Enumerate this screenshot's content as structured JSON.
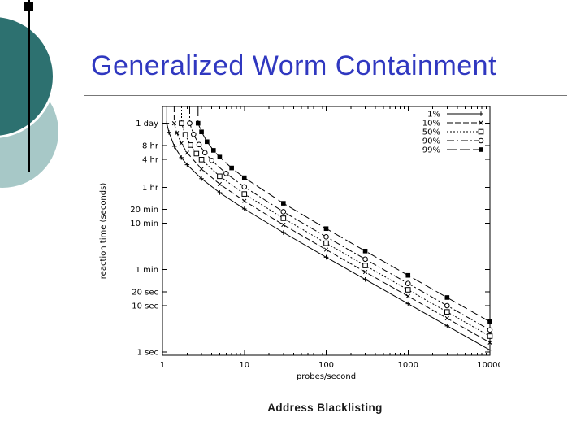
{
  "slide": {
    "title": "Generalized Worm Containment",
    "caption": "Address Blacklisting",
    "colors": {
      "title": "#3038C0",
      "caption": "#1A1A1A",
      "circle_dark": "#2D7170",
      "circle_light": "#A7C8C7",
      "accent_line": "#000000",
      "background": "#FFFFFF"
    }
  },
  "chart_data": {
    "type": "line",
    "title": "",
    "xlabel": "probes/second",
    "ylabel": "reaction time (seconds)",
    "x_scale": "log",
    "y_scale": "log",
    "xlim": [
      1,
      10000
    ],
    "ylim_seconds": [
      1,
      200000
    ],
    "grid": false,
    "legend_position": "top-right-inside",
    "x_ticks": [
      {
        "value": 1,
        "label": "1"
      },
      {
        "value": 10,
        "label": "10"
      },
      {
        "value": 100,
        "label": "100"
      },
      {
        "value": 1000,
        "label": "1000"
      },
      {
        "value": 10000,
        "label": "10000"
      }
    ],
    "y_ticks": [
      {
        "seconds": 86400,
        "label": "1 day"
      },
      {
        "seconds": 28800,
        "label": "8 hr"
      },
      {
        "seconds": 14400,
        "label": "4 hr"
      },
      {
        "seconds": 3600,
        "label": "1 hr"
      },
      {
        "seconds": 1200,
        "label": "20 min"
      },
      {
        "seconds": 600,
        "label": "10 min"
      },
      {
        "seconds": 60,
        "label": "1 min"
      },
      {
        "seconds": 20,
        "label": "20 sec"
      },
      {
        "seconds": 10,
        "label": "10 sec"
      },
      {
        "seconds": 1,
        "label": "1 sec"
      }
    ],
    "series": [
      {
        "name": "1%",
        "marker": "plus",
        "line_style": "solid",
        "points": [
          [
            1.13,
            86400
          ],
          [
            1.2,
            55000
          ],
          [
            1.4,
            27500
          ],
          [
            1.7,
            15700
          ],
          [
            2,
            11000
          ],
          [
            3,
            5500
          ],
          [
            5,
            2750
          ],
          [
            10,
            1222
          ],
          [
            30,
            379
          ],
          [
            100,
            111
          ],
          [
            300,
            36.8
          ],
          [
            1000,
            11.0
          ],
          [
            3000,
            3.67
          ],
          [
            10000,
            1.1
          ]
        ]
      },
      {
        "name": "10%",
        "marker": "cross",
        "line_style": "dashed",
        "points": [
          [
            1.39,
            86400
          ],
          [
            1.5,
            53300
          ],
          [
            1.7,
            32000
          ],
          [
            2,
            20000
          ],
          [
            3,
            8890
          ],
          [
            5,
            4210
          ],
          [
            10,
            1818
          ],
          [
            30,
            556
          ],
          [
            100,
            162
          ],
          [
            300,
            53.5
          ],
          [
            1000,
            16.0
          ],
          [
            3000,
            5.34
          ],
          [
            10000,
            1.6
          ]
        ]
      },
      {
        "name": "50%",
        "marker": "square-open",
        "line_style": "dotted",
        "points": [
          [
            1.71,
            86400
          ],
          [
            1.9,
            48900
          ],
          [
            2.2,
            29300
          ],
          [
            2.6,
            19100
          ],
          [
            3,
            14200
          ],
          [
            5,
            6200
          ],
          [
            10,
            2570
          ],
          [
            30,
            770
          ],
          [
            100,
            223
          ],
          [
            300,
            73.7
          ],
          [
            1000,
            22.0
          ],
          [
            3000,
            7.34
          ],
          [
            10000,
            2.2
          ]
        ]
      },
      {
        "name": "90%",
        "marker": "circle-open",
        "line_style": "dash-dot",
        "points": [
          [
            2.15,
            86400
          ],
          [
            2.4,
            50000
          ],
          [
            2.8,
            30000
          ],
          [
            3.3,
            20000
          ],
          [
            4,
            13600
          ],
          [
            6,
            7140
          ],
          [
            10,
            3660
          ],
          [
            30,
            1064
          ],
          [
            100,
            306
          ],
          [
            300,
            101
          ],
          [
            1000,
            30.1
          ],
          [
            3000,
            10.0
          ],
          [
            10000,
            3.0
          ]
        ]
      },
      {
        "name": "99%",
        "marker": "square-filled",
        "line_style": "long-dash",
        "points": [
          [
            2.72,
            86400
          ],
          [
            3,
            56300
          ],
          [
            3.5,
            34600
          ],
          [
            4.2,
            22500
          ],
          [
            5,
            16100
          ],
          [
            7,
            9380
          ],
          [
            10,
            5770
          ],
          [
            30,
            1619
          ],
          [
            100,
            460
          ],
          [
            300,
            151
          ],
          [
            1000,
            45.1
          ],
          [
            3000,
            15.0
          ],
          [
            10000,
            4.5
          ]
        ]
      }
    ]
  }
}
